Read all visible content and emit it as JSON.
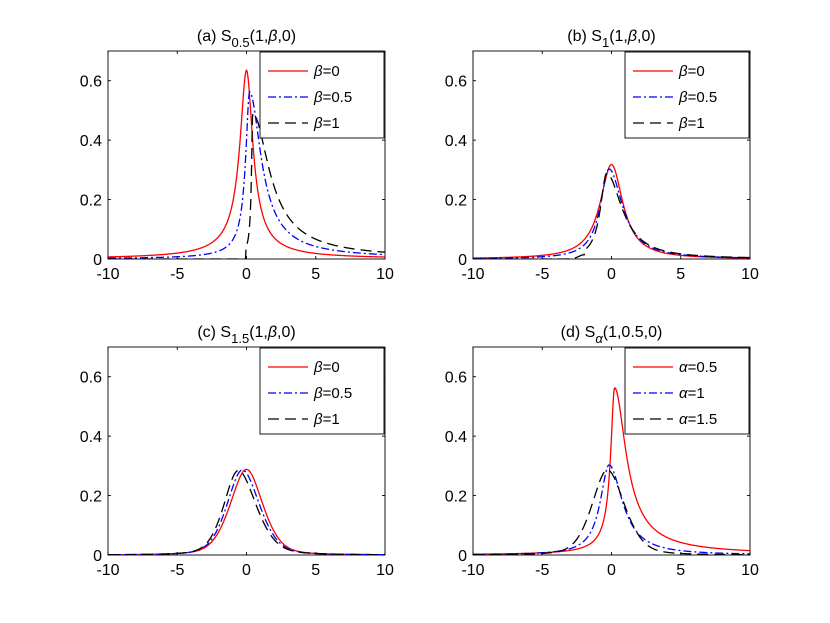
{
  "figure": {
    "description": "Stable distribution densities, 2x2 grid of subplots"
  },
  "colors": {
    "red": "#ff0000",
    "blue": "#0000ff",
    "black": "#000000"
  },
  "chart_data": [
    {
      "type": "line",
      "title": {
        "prefix": "(a) S",
        "sub": "0.5",
        "suffix": "(1,",
        "greek": "β",
        "tail": ",0)"
      },
      "xlim": [
        -10,
        10
      ],
      "ylim": [
        0,
        0.7
      ],
      "xticks": [
        -10,
        -5,
        0,
        5,
        10
      ],
      "yticks": [
        0,
        0.2,
        0.4,
        0.6
      ],
      "xtick_labels": [
        "-10",
        "-5",
        "0",
        "5",
        "10"
      ],
      "ytick_labels": [
        "0",
        "0.2",
        "0.4",
        "0.6"
      ],
      "legend_position": "top-right",
      "series": [
        {
          "name": "β=0",
          "greek": "β",
          "rest": "=0",
          "color": "red",
          "dash": "solid",
          "alpha": 0.5,
          "beta": 0
        },
        {
          "name": "β=0.5",
          "greek": "β",
          "rest": "=0.5",
          "color": "blue",
          "dash": "dashdot",
          "alpha": 0.5,
          "beta": 0.5
        },
        {
          "name": "β=1",
          "greek": "β",
          "rest": "=1",
          "color": "black",
          "dash": "dashed",
          "alpha": 0.5,
          "beta": 1
        }
      ]
    },
    {
      "type": "line",
      "title": {
        "prefix": "(b) S",
        "sub": "1",
        "suffix": "(1,",
        "greek": "β",
        "tail": ",0)"
      },
      "xlim": [
        -10,
        10
      ],
      "ylim": [
        0,
        0.7
      ],
      "xticks": [
        -10,
        -5,
        0,
        5,
        10
      ],
      "yticks": [
        0,
        0.2,
        0.4,
        0.6
      ],
      "xtick_labels": [
        "-10",
        "-5",
        "0",
        "5",
        "10"
      ],
      "ytick_labels": [
        "0",
        "0.2",
        "0.4",
        "0.6"
      ],
      "legend_position": "top-right",
      "series": [
        {
          "name": "β=0",
          "greek": "β",
          "rest": "=0",
          "color": "red",
          "dash": "solid",
          "alpha": 1,
          "beta": 0
        },
        {
          "name": "β=0.5",
          "greek": "β",
          "rest": "=0.5",
          "color": "blue",
          "dash": "dashdot",
          "alpha": 1,
          "beta": 0.5
        },
        {
          "name": "β=1",
          "greek": "β",
          "rest": "=1",
          "color": "black",
          "dash": "dashed",
          "alpha": 1,
          "beta": 1
        }
      ]
    },
    {
      "type": "line",
      "title": {
        "prefix": "(c) S",
        "sub": "1.5",
        "suffix": "(1,",
        "greek": "β",
        "tail": ",0)"
      },
      "xlim": [
        -10,
        10
      ],
      "ylim": [
        0,
        0.7
      ],
      "xticks": [
        -10,
        -5,
        0,
        5,
        10
      ],
      "yticks": [
        0,
        0.2,
        0.4,
        0.6
      ],
      "xtick_labels": [
        "-10",
        "-5",
        "0",
        "5",
        "10"
      ],
      "ytick_labels": [
        "0",
        "0.2",
        "0.4",
        "0.6"
      ],
      "legend_position": "top-right",
      "series": [
        {
          "name": "β=0",
          "greek": "β",
          "rest": "=0",
          "color": "red",
          "dash": "solid",
          "alpha": 1.5,
          "beta": 0
        },
        {
          "name": "β=0.5",
          "greek": "β",
          "rest": "=0.5",
          "color": "blue",
          "dash": "dashdot",
          "alpha": 1.5,
          "beta": 0.5
        },
        {
          "name": "β=1",
          "greek": "β",
          "rest": "=1",
          "color": "black",
          "dash": "dashed",
          "alpha": 1.5,
          "beta": 1
        }
      ]
    },
    {
      "type": "line",
      "title": {
        "prefix": "(d) S",
        "sub": "α",
        "suffix": "(1,0.5,0)",
        "greek": "",
        "tail": ""
      },
      "xlim": [
        -10,
        10
      ],
      "ylim": [
        0,
        0.7
      ],
      "xticks": [
        -10,
        -5,
        0,
        5,
        10
      ],
      "yticks": [
        0,
        0.2,
        0.4,
        0.6
      ],
      "xtick_labels": [
        "-10",
        "-5",
        "0",
        "5",
        "10"
      ],
      "ytick_labels": [
        "0",
        "0.2",
        "0.4",
        "0.6"
      ],
      "legend_position": "top-right",
      "series": [
        {
          "name": "α=0.5",
          "greek": "α",
          "rest": "=0.5",
          "color": "red",
          "dash": "solid",
          "alpha": 0.5,
          "beta": 0.5
        },
        {
          "name": "α=1",
          "greek": "α",
          "rest": "=1",
          "color": "blue",
          "dash": "dashdot",
          "alpha": 1,
          "beta": 0.5
        },
        {
          "name": "α=1.5",
          "greek": "α",
          "rest": "=1.5",
          "color": "black",
          "dash": "dashed",
          "alpha": 1.5,
          "beta": 0.5
        }
      ]
    }
  ]
}
